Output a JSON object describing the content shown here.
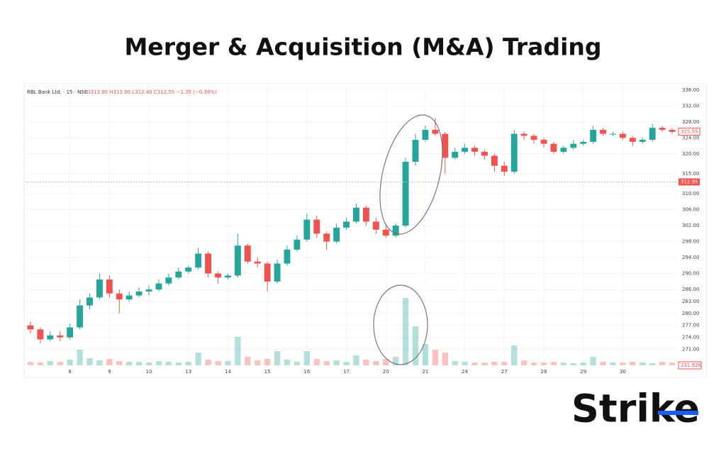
{
  "header": {
    "title": "Merger & Acquisition (M&A) Trading"
  },
  "logo": "Strike",
  "chart_data": {
    "type": "candlestick",
    "symbol_text": "RBL Bank Ltd. · 15 · NSE",
    "ohlc_text": "O313.90 H313.90 L312.40 C312.55 −1.35 (−0.38%)",
    "categories": [
      null,
      null,
      null,
      null,
      "8",
      null,
      null,
      null,
      "9",
      null,
      null,
      null,
      "10",
      null,
      null,
      null,
      "13",
      null,
      null,
      null,
      "14",
      null,
      null,
      null,
      "15",
      null,
      null,
      null,
      "16",
      null,
      null,
      null,
      "17",
      null,
      null,
      null,
      "20",
      null,
      null,
      null,
      "21",
      null,
      null,
      null,
      "24",
      null,
      null,
      null,
      "27",
      null,
      null,
      null,
      "28",
      null,
      null,
      null,
      "29",
      null,
      null,
      null,
      "30",
      null,
      null,
      null,
      null,
      null
    ],
    "open": [
      277.0,
      276.0,
      273.5,
      274.5,
      274.0,
      276.5,
      282.0,
      284.0,
      288.5,
      285.0,
      283.5,
      284.5,
      285.5,
      286.0,
      287.5,
      289.0,
      290.5,
      291.5,
      295.0,
      290.0,
      289.0,
      289.5,
      297.0,
      293.0,
      292.5,
      288.0,
      292.5,
      296.0,
      298.5,
      303.5,
      300.0,
      298.0,
      301.5,
      303.0,
      306.5,
      303.0,
      301.0,
      299.5,
      302.0,
      318.0,
      323.5,
      326.0,
      325.0,
      319.0,
      320.5,
      321.5,
      320.5,
      319.5,
      317.0,
      315.5,
      325.0,
      324.5,
      323.5,
      322.5,
      320.5,
      321.5,
      322.5,
      323.0,
      326.0,
      325.0,
      325.0,
      324.0,
      323.0,
      323.5,
      326.5,
      326.0
    ],
    "high": [
      278.0,
      276.5,
      275.5,
      275.5,
      277.5,
      283.5,
      285.0,
      290.0,
      289.5,
      286.0,
      285.5,
      286.5,
      287.0,
      288.5,
      290.0,
      291.5,
      292.0,
      296.5,
      295.5,
      290.5,
      290.0,
      300.0,
      297.5,
      294.0,
      293.0,
      293.5,
      297.0,
      299.5,
      305.0,
      304.5,
      300.5,
      302.5,
      304.0,
      307.5,
      307.0,
      304.0,
      302.0,
      302.5,
      319.0,
      325.0,
      327.0,
      329.0,
      325.5,
      321.5,
      322.5,
      322.0,
      321.0,
      320.0,
      318.0,
      326.0,
      325.5,
      325.0,
      324.0,
      323.0,
      322.0,
      323.5,
      323.5,
      327.0,
      326.5,
      325.5,
      325.5,
      324.5,
      324.0,
      327.5,
      327.0,
      326.5
    ],
    "low": [
      275.0,
      272.5,
      273.0,
      273.0,
      273.5,
      276.0,
      281.0,
      283.5,
      284.0,
      280.0,
      283.0,
      284.0,
      284.5,
      285.5,
      287.0,
      288.5,
      290.0,
      291.0,
      289.0,
      287.5,
      288.5,
      289.0,
      292.5,
      291.5,
      285.5,
      287.5,
      292.0,
      295.5,
      298.0,
      299.0,
      296.0,
      297.5,
      301.0,
      302.5,
      302.0,
      300.0,
      299.0,
      299.0,
      301.5,
      317.0,
      323.0,
      324.5,
      315.0,
      318.5,
      320.0,
      319.5,
      318.5,
      315.5,
      314.5,
      315.0,
      323.5,
      322.5,
      321.5,
      320.0,
      320.0,
      321.0,
      322.0,
      322.5,
      324.5,
      324.5,
      323.5,
      322.0,
      322.5,
      323.0,
      325.5,
      325.0
    ],
    "close": [
      276.0,
      273.5,
      274.5,
      274.0,
      276.5,
      282.0,
      284.0,
      288.5,
      285.0,
      283.5,
      284.5,
      285.5,
      286.0,
      287.5,
      289.0,
      290.5,
      291.5,
      295.0,
      290.0,
      289.0,
      289.5,
      297.0,
      293.0,
      292.5,
      288.0,
      292.5,
      296.0,
      298.5,
      303.5,
      300.0,
      298.0,
      301.5,
      303.0,
      306.5,
      303.0,
      301.0,
      299.5,
      302.0,
      318.0,
      323.5,
      326.0,
      325.0,
      319.0,
      320.5,
      321.5,
      320.5,
      319.5,
      317.0,
      315.5,
      325.0,
      324.5,
      323.5,
      322.5,
      320.5,
      321.5,
      322.5,
      323.0,
      326.0,
      325.0,
      325.0,
      324.0,
      323.0,
      323.5,
      326.5,
      326.0,
      325.5
    ],
    "volume": [
      5,
      4,
      6,
      5,
      8,
      22,
      10,
      7,
      9,
      6,
      5,
      5,
      4,
      6,
      5,
      4,
      5,
      18,
      8,
      6,
      6,
      40,
      12,
      7,
      9,
      20,
      8,
      5,
      20,
      9,
      6,
      7,
      5,
      14,
      8,
      6,
      9,
      12,
      95,
      55,
      30,
      22,
      18,
      6,
      5,
      4,
      4,
      5,
      5,
      28,
      7,
      4,
      4,
      5,
      4,
      3,
      4,
      12,
      5,
      4,
      4,
      5,
      4,
      3,
      5,
      4
    ],
    "up_color": "#26a69a",
    "down_color": "#ef5350",
    "ylim": [
      267,
      337.2
    ],
    "yticks": [
      {
        "value": 336,
        "label": "336.00"
      },
      {
        "value": 332,
        "label": "332.00"
      },
      {
        "value": 328,
        "label": "328.00"
      },
      {
        "value": 324,
        "label": "324.00"
      },
      {
        "value": 320,
        "label": "320.00"
      },
      {
        "value": 315,
        "label": "315.00"
      },
      {
        "value": 310,
        "label": "310.00"
      },
      {
        "value": 306,
        "label": "306.00"
      },
      {
        "value": 302,
        "label": "302.00"
      },
      {
        "value": 298,
        "label": "298.00"
      },
      {
        "value": 294,
        "label": "294.00"
      },
      {
        "value": 290,
        "label": "290.00"
      },
      {
        "value": 286,
        "label": "286.00"
      },
      {
        "value": 283,
        "label": "283.00"
      },
      {
        "value": 280,
        "label": "280.00"
      },
      {
        "value": 277,
        "label": "277.00"
      },
      {
        "value": 274,
        "label": "274.00"
      },
      {
        "value": 271,
        "label": "271.00"
      }
    ],
    "last_price": 325.55,
    "crosshair_price": 312.95,
    "volume_label": "231.92K",
    "grid": true
  }
}
